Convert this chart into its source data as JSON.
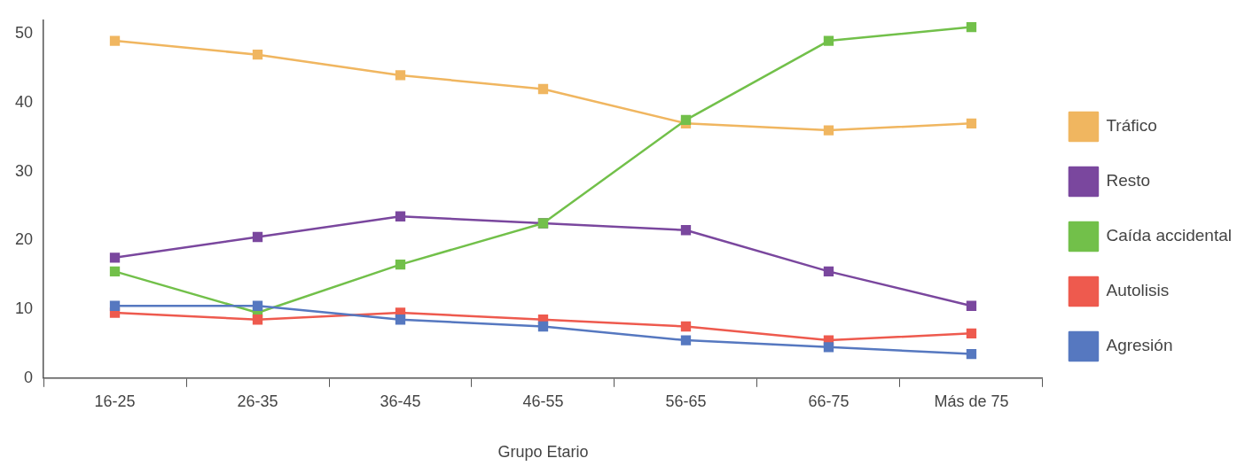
{
  "chart_data": {
    "type": "line",
    "xlabel": "Grupo Etario",
    "categories": [
      "16-25",
      "26-35",
      "36-45",
      "46-55",
      "56-65",
      "66-75",
      "Más de 75"
    ],
    "series": [
      {
        "name": "Tráfico",
        "color": "#f0b660",
        "values": [
          49,
          47,
          44,
          42,
          37,
          36,
          37
        ]
      },
      {
        "name": "Resto",
        "color": "#7a479e",
        "values": [
          17.5,
          20.5,
          23.5,
          22.5,
          21.5,
          15.5,
          10.5
        ]
      },
      {
        "name": "Caída accidental",
        "color": "#72c04a",
        "values": [
          15.5,
          9.5,
          16.5,
          22.5,
          37.5,
          49,
          51
        ]
      },
      {
        "name": "Autolisis",
        "color": "#ee5a4e",
        "values": [
          9.5,
          8.5,
          9.5,
          8.5,
          7.5,
          5.5,
          6.5
        ]
      },
      {
        "name": "Agresión",
        "color": "#5678c0",
        "values": [
          10.5,
          10.5,
          8.5,
          7.5,
          5.5,
          4.5,
          3.5
        ]
      }
    ],
    "ylim": [
      0,
      52
    ],
    "yticks": [
      0,
      10,
      20,
      30,
      40,
      50
    ],
    "grid": false,
    "legend": "right",
    "marker": "square",
    "line_style": "solid"
  }
}
